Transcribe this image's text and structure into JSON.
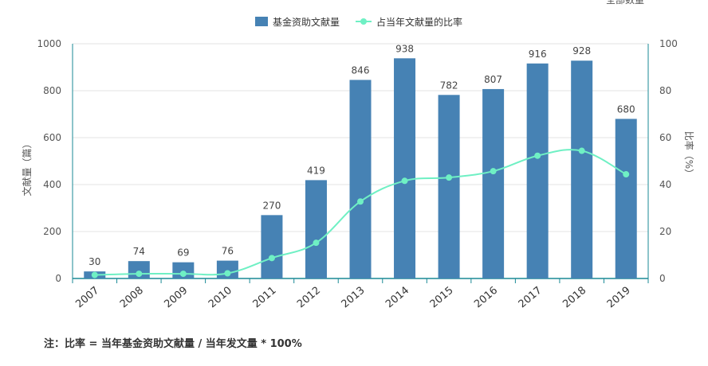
{
  "corner_text": "全部数量",
  "note": "注：比率 = 当年基金资助文献量 / 当年发文量 * 100%",
  "chart_data": {
    "type": "bar",
    "categories": [
      "2007",
      "2008",
      "2009",
      "2010",
      "2011",
      "2012",
      "2013",
      "2014",
      "2015",
      "2016",
      "2017",
      "2018",
      "2019"
    ],
    "series": [
      {
        "name": "基金资助文献量",
        "type": "bar",
        "axis": "left",
        "color": "#4682b4",
        "values": [
          30,
          74,
          69,
          76,
          270,
          419,
          846,
          938,
          782,
          807,
          916,
          928,
          680
        ],
        "data_labels": [
          "30",
          "74",
          "69",
          "76",
          "270",
          "419",
          "846",
          "938",
          "782",
          "807",
          "916",
          "928",
          "680"
        ]
      },
      {
        "name": "占当年文献量的比率",
        "type": "line",
        "axis": "right",
        "color": "#6ff0c4",
        "values": [
          1.5,
          2.0,
          2.0,
          2.2,
          8.7,
          15.2,
          32.8,
          41.6,
          43.0,
          45.7,
          52.3,
          54.4,
          44.4
        ]
      }
    ],
    "ylabel": "文献量（篇）",
    "y2label": "比率（%）",
    "ylim": [
      0,
      1000
    ],
    "y2lim": [
      0,
      100
    ],
    "yticks": [
      "0",
      "200",
      "400",
      "600",
      "800",
      "1000"
    ],
    "y2ticks": [
      "0",
      "20",
      "40",
      "60",
      "80",
      "100"
    ],
    "ytick_values": [
      0,
      200,
      400,
      600,
      800,
      1000
    ],
    "y2tick_values": [
      0,
      20,
      40,
      60,
      80,
      100
    ],
    "grid": true,
    "legend": "top-center"
  }
}
